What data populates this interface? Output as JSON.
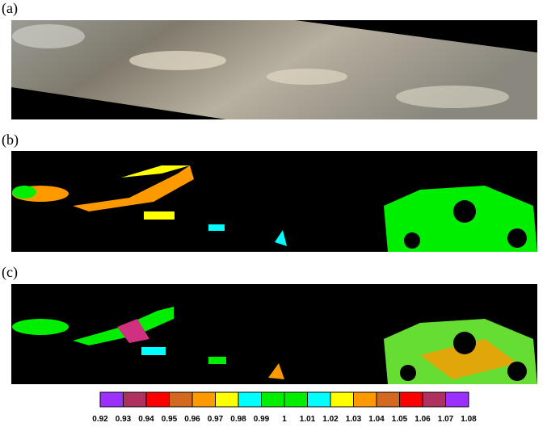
{
  "panels": [
    {
      "label": "(a)"
    },
    {
      "label": "(b)"
    },
    {
      "label": "(c)"
    }
  ],
  "colorbar": {
    "colors": [
      "#9b30ff",
      "#b03060",
      "#ff0000",
      "#d2691e",
      "#ff9900",
      "#ffff00",
      "#00ffff",
      "#00ee00",
      "#00ee00",
      "#00ffff",
      "#ffff00",
      "#ff9900",
      "#d2691e",
      "#ff0000",
      "#b03060",
      "#9b30ff"
    ],
    "labels": [
      "0.92",
      "0.93",
      "0.94",
      "0.95",
      "0.96",
      "0.97",
      "0.98",
      "0.99",
      "1",
      "1.01",
      "1.02",
      "1.03",
      "1.04",
      "1.05",
      "1.06",
      "1.07",
      "1.08"
    ]
  }
}
